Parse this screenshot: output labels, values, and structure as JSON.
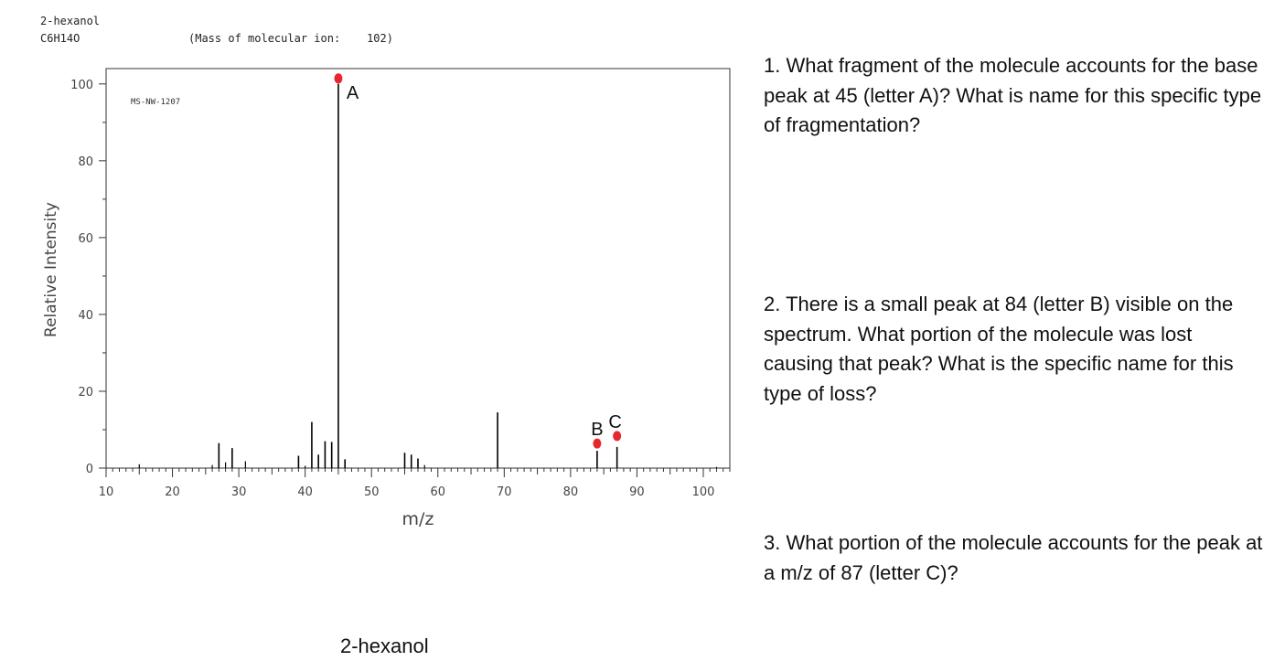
{
  "header": {
    "compound_name": "2-hexanol",
    "formula": "C6H14O",
    "mass_label": "(Mass of molecular ion:",
    "mass_value": "102)"
  },
  "chart_data": {
    "type": "bar",
    "subtype": "mass-spectrum",
    "sample_id": "MS-NW-1207",
    "xlabel": "m/z",
    "ylabel": "Relative Intensity",
    "xlim": [
      10,
      104
    ],
    "ylim": [
      0,
      104
    ],
    "x_ticks": [
      10,
      20,
      30,
      40,
      50,
      60,
      70,
      80,
      90,
      100
    ],
    "y_ticks": [
      0,
      20,
      40,
      60,
      80,
      100
    ],
    "grid": false,
    "peaks": [
      {
        "mz": 15,
        "intensity": 1.0
      },
      {
        "mz": 26,
        "intensity": 0.8
      },
      {
        "mz": 27,
        "intensity": 6.5
      },
      {
        "mz": 28,
        "intensity": 1.5
      },
      {
        "mz": 29,
        "intensity": 5.2
      },
      {
        "mz": 31,
        "intensity": 1.8
      },
      {
        "mz": 39,
        "intensity": 3.2
      },
      {
        "mz": 40,
        "intensity": 0.6
      },
      {
        "mz": 41,
        "intensity": 12.0
      },
      {
        "mz": 42,
        "intensity": 3.5
      },
      {
        "mz": 43,
        "intensity": 7.0
      },
      {
        "mz": 44,
        "intensity": 6.8
      },
      {
        "mz": 45,
        "intensity": 100.0
      },
      {
        "mz": 46,
        "intensity": 2.3
      },
      {
        "mz": 55,
        "intensity": 4.0
      },
      {
        "mz": 56,
        "intensity": 3.5
      },
      {
        "mz": 57,
        "intensity": 2.5
      },
      {
        "mz": 58,
        "intensity": 0.8
      },
      {
        "mz": 69,
        "intensity": 14.5
      },
      {
        "mz": 84,
        "intensity": 4.5
      },
      {
        "mz": 87,
        "intensity": 5.5
      },
      {
        "mz": 102,
        "intensity": 0.3
      }
    ],
    "annotations": [
      {
        "label": "A",
        "mz": 45,
        "intensity": 100.0
      },
      {
        "label": "B",
        "mz": 84,
        "intensity": 4.5
      },
      {
        "label": "C",
        "mz": 87,
        "intensity": 5.5
      }
    ],
    "marker_color": "#e8262b"
  },
  "questions": {
    "q1": "1.   What fragment of the molecule accounts for the base peak at 45 (letter A)? What is name for this specific type of fragmentation?",
    "q2": "2. There is a small peak at 84 (letter B) visible on the spectrum. What portion of the molecule was lost causing that peak? What is the specific name for this type of loss?",
    "q3": "3. What portion of the molecule accounts for the peak at a m/z of 87 (letter C)?"
  },
  "caption": "2-hexanol"
}
